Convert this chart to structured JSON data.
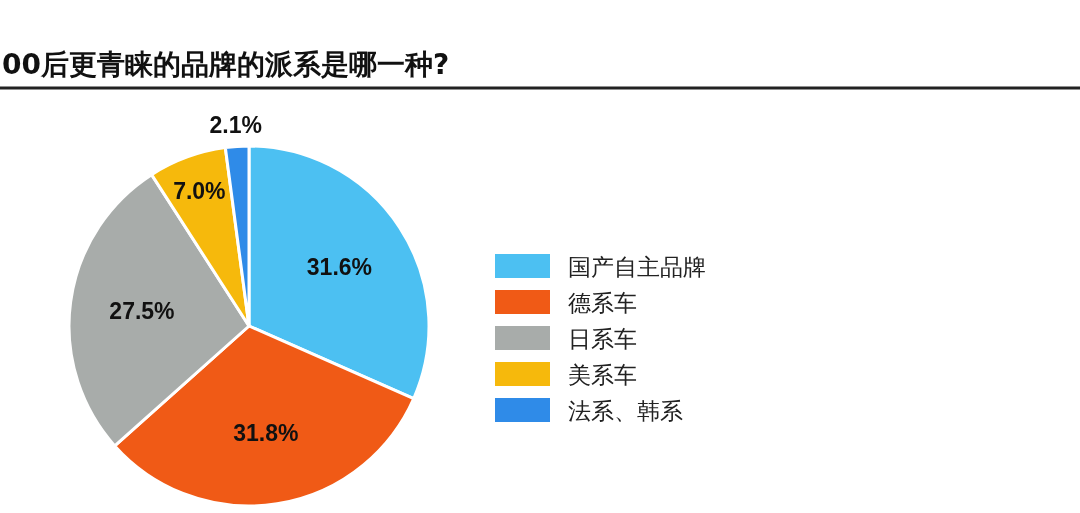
{
  "chart_data": {
    "type": "pie",
    "title": "00后更青睐的品牌的派系是哪一种?",
    "categories": [
      "国产自主品牌",
      "德系车",
      "日系车",
      "美系车",
      "法系、韩系"
    ],
    "values": [
      31.6,
      31.8,
      27.5,
      7.0,
      2.1
    ],
    "colors": [
      "#4cc0f2",
      "#f05a16",
      "#a8acaa",
      "#f6b90c",
      "#2f8be8"
    ],
    "value_labels": [
      "31.6%",
      "31.8%",
      "27.5%",
      "7.0%",
      "2.1%"
    ],
    "legend": "right"
  }
}
